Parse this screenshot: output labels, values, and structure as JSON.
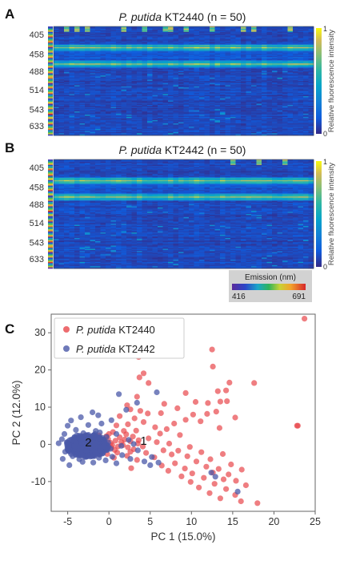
{
  "panels": {
    "A": {
      "label": "A",
      "title_italic": "P. putida",
      "title_rest": " KT2440 (n = 50)"
    },
    "B": {
      "label": "B",
      "title_italic": "P. putida",
      "title_rest": " KT2442 (n = 50)"
    },
    "C": {
      "label": "C"
    }
  },
  "chart_data": [
    {
      "type": "heatmap",
      "panel": "A",
      "rows": 100,
      "columns": 50,
      "y_tick_labels": [
        "405",
        "458",
        "488",
        "514",
        "543",
        "633"
      ],
      "y_tick_values": [
        405,
        458,
        488,
        514,
        543,
        633
      ],
      "colorbar": {
        "label": "Relative fluorescence intensity",
        "min": 0,
        "max": 1,
        "ticks": [
          "1",
          "0"
        ],
        "colormap": "parula"
      },
      "bright_bands_nm": [
        458,
        488
      ],
      "sporadic_band_nm": 405
    },
    {
      "type": "heatmap",
      "panel": "B",
      "rows": 100,
      "columns": 50,
      "y_tick_labels": [
        "405",
        "458",
        "488",
        "514",
        "543",
        "633"
      ],
      "y_tick_values": [
        405,
        458,
        488,
        514,
        543,
        633
      ],
      "colorbar": {
        "label": "Relative fluorescence intensity",
        "min": 0,
        "max": 1,
        "ticks": [
          "1",
          "0"
        ],
        "colormap": "parula"
      },
      "bright_bands_nm": [
        458,
        488
      ],
      "sporadic_band_nm": 405
    },
    {
      "type": "scatter",
      "panel": "C",
      "xlabel": "PC 1 (15.0%)",
      "ylabel": "PC 2 (12.0%)",
      "xlim": [
        -7,
        25
      ],
      "ylim": [
        -18,
        35
      ],
      "x_ticks": [
        -5,
        0,
        5,
        10,
        15,
        20,
        25
      ],
      "y_ticks": [
        -10,
        0,
        10,
        20,
        30
      ],
      "legend_position": "top-left",
      "annotations": [
        {
          "text": "1",
          "x": 4.2,
          "y": 1.0
        },
        {
          "text": "2",
          "x": -2.5,
          "y": 0.5
        }
      ],
      "series": [
        {
          "name_italic": "P. putida",
          "name_rest": " KT2440",
          "color": "#e8474b",
          "points": [
            [
              23.7,
              33.8
            ],
            [
              12.5,
              25.5
            ],
            [
              3.6,
              23.5
            ],
            [
              17.6,
              16.5
            ],
            [
              12.6,
              20.9
            ],
            [
              4.2,
              19.1
            ],
            [
              3.7,
              18.0
            ],
            [
              14.6,
              16.6
            ],
            [
              4.8,
              16.5
            ],
            [
              14.2,
              14.5
            ],
            [
              13.2,
              14.3
            ],
            [
              9.3,
              13.8
            ],
            [
              3.4,
              12.8
            ],
            [
              13.5,
              11.5
            ],
            [
              14.3,
              11.6
            ],
            [
              2.2,
              10.5
            ],
            [
              6.7,
              10.9
            ],
            [
              10.5,
              11.4
            ],
            [
              12.0,
              11.1
            ],
            [
              8.3,
              9.7
            ],
            [
              3.8,
              9.0
            ],
            [
              2.6,
              9.4
            ],
            [
              4.7,
              8.3
            ],
            [
              10.2,
              8.0
            ],
            [
              11.9,
              8.2
            ],
            [
              13.0,
              8.8
            ],
            [
              3.1,
              7.0
            ],
            [
              1.3,
              7.6
            ],
            [
              6.3,
              8.4
            ],
            [
              15.3,
              7.2
            ],
            [
              9.3,
              6.6
            ],
            [
              4.2,
              6.0
            ],
            [
              7.9,
              5.6
            ],
            [
              2.3,
              5.4
            ],
            [
              11.1,
              6.2
            ],
            [
              0.9,
              5.1
            ],
            [
              5.6,
              4.6
            ],
            [
              7.0,
              4.1
            ],
            [
              13.4,
              4.4
            ],
            [
              22.9,
              5.0
            ],
            [
              3.3,
              3.7
            ],
            [
              0.5,
              3.3
            ],
            [
              6.2,
              2.9
            ],
            [
              8.6,
              2.5
            ],
            [
              2.1,
              2.7
            ],
            [
              1.3,
              1.9
            ],
            [
              4.8,
              1.6
            ],
            [
              3.6,
              1.1
            ],
            [
              0.8,
              1.0
            ],
            [
              2.6,
              0.8
            ],
            [
              5.8,
              0.6
            ],
            [
              7.3,
              0.2
            ],
            [
              9.8,
              -0.7
            ],
            [
              1.7,
              -0.2
            ],
            [
              4.1,
              -0.6
            ],
            [
              0.3,
              -0.9
            ],
            [
              3.0,
              -1.3
            ],
            [
              6.6,
              -1.6
            ],
            [
              8.4,
              -1.7
            ],
            [
              11.2,
              -2.1
            ],
            [
              1.0,
              -2.2
            ],
            [
              4.5,
              -2.3
            ],
            [
              7.6,
              -2.7
            ],
            [
              2.2,
              -3.1
            ],
            [
              9.5,
              -3.2
            ],
            [
              13.8,
              -2.6
            ],
            [
              5.5,
              -3.5
            ],
            [
              12.3,
              -4.0
            ],
            [
              0.6,
              -3.6
            ],
            [
              3.4,
              -4.2
            ],
            [
              10.6,
              -4.6
            ],
            [
              8.0,
              -5.1
            ],
            [
              14.8,
              -5.4
            ],
            [
              6.4,
              -5.7
            ],
            [
              11.8,
              -6.0
            ],
            [
              9.2,
              -6.5
            ],
            [
              13.3,
              -6.6
            ],
            [
              16.1,
              -6.8
            ],
            [
              2.7,
              -6.4
            ],
            [
              7.2,
              -7.1
            ],
            [
              12.6,
              -7.6
            ],
            [
              10.1,
              -7.8
            ],
            [
              14.5,
              -8.1
            ],
            [
              8.8,
              -8.6
            ],
            [
              11.5,
              -9.0
            ],
            [
              13.9,
              -9.4
            ],
            [
              15.4,
              -9.8
            ],
            [
              9.9,
              -10.1
            ],
            [
              12.8,
              -10.6
            ],
            [
              16.6,
              -11.0
            ],
            [
              10.9,
              -11.6
            ],
            [
              14.2,
              -12.0
            ],
            [
              12.2,
              -13.1
            ],
            [
              15.3,
              -13.6
            ],
            [
              13.5,
              -14.5
            ],
            [
              16.0,
              -15.3
            ],
            [
              18.0,
              -15.8
            ],
            [
              22.8,
              5.0
            ],
            [
              -0.3,
              2.2
            ],
            [
              -0.8,
              -0.4
            ],
            [
              -0.2,
              -2.6
            ],
            [
              -1.0,
              1.0
            ],
            [
              1.8,
              3.6
            ],
            [
              -1.4,
              -1.6
            ],
            [
              0.2,
              0.4
            ],
            [
              1.1,
              -0.6
            ],
            [
              -0.6,
              0.8
            ],
            [
              0.7,
              -1.5
            ],
            [
              2.9,
              2.1
            ],
            [
              -0.1,
              1.4
            ],
            [
              -1.8,
              0.3
            ],
            [
              1.5,
              0.6
            ],
            [
              0.4,
              -0.2
            ],
            [
              2.3,
              -0.8
            ],
            [
              -0.5,
              -1.0
            ],
            [
              1.9,
              1.3
            ],
            [
              3.5,
              0.2
            ],
            [
              0.0,
              2.8
            ],
            [
              -1.2,
              2.4
            ],
            [
              2.6,
              -2.0
            ]
          ]
        },
        {
          "name_italic": "P. putida",
          "name_rest": " KT2442",
          "color": "#4a58a8",
          "points": [
            [
              1.2,
              13.5
            ],
            [
              5.8,
              14.0
            ],
            [
              3.4,
              11.2
            ],
            [
              2.1,
              9.3
            ],
            [
              -2.0,
              8.6
            ],
            [
              -3.4,
              7.3
            ],
            [
              -1.3,
              7.8
            ],
            [
              -4.6,
              6.4
            ],
            [
              0.3,
              6.5
            ],
            [
              -0.9,
              5.6
            ],
            [
              -5.0,
              5.0
            ],
            [
              -2.5,
              5.2
            ],
            [
              -4.0,
              3.9
            ],
            [
              -5.4,
              2.8
            ],
            [
              -3.1,
              3.0
            ],
            [
              -1.6,
              3.6
            ],
            [
              0.9,
              2.8
            ],
            [
              -6.1,
              0.3
            ],
            [
              -5.7,
              1.4
            ],
            [
              -4.9,
              -0.8
            ],
            [
              -5.3,
              -2.0
            ],
            [
              -4.4,
              -3.2
            ],
            [
              -3.6,
              -4.0
            ],
            [
              -2.8,
              -3.4
            ],
            [
              -1.2,
              -3.6
            ],
            [
              0.4,
              -3.3
            ],
            [
              -3.2,
              -4.7
            ],
            [
              -0.4,
              -4.3
            ],
            [
              1.6,
              -2.9
            ],
            [
              -4.8,
              -5.6
            ],
            [
              3.5,
              -1.6
            ],
            [
              2.6,
              -3.9
            ],
            [
              4.3,
              -4.6
            ],
            [
              5.2,
              -3.4
            ],
            [
              6.0,
              -4.9
            ],
            [
              5.0,
              -5.6
            ],
            [
              12.4,
              -7.6
            ],
            [
              12.9,
              -8.7
            ],
            [
              15.6,
              -12.7
            ],
            [
              -1.9,
              -4.9
            ],
            [
              -5.6,
              -3.9
            ],
            [
              0.9,
              -5.1
            ],
            [
              -4.2,
              1.8
            ],
            [
              -3.7,
              -1.3
            ],
            [
              -2.9,
              1.1
            ],
            [
              -2.3,
              -0.9
            ],
            [
              -1.6,
              0.6
            ],
            [
              -0.8,
              -1.8
            ],
            [
              -4.5,
              0.2
            ],
            [
              -3.9,
              2.4
            ],
            [
              -2.6,
              -2.2
            ],
            [
              -1.1,
              1.9
            ],
            [
              -3.3,
              -0.1
            ],
            [
              -2.0,
              0.3
            ],
            [
              -4.1,
              -1.9
            ],
            [
              -1.4,
              -1.2
            ],
            [
              -0.5,
              0.8
            ],
            [
              -2.8,
              2.5
            ],
            [
              -3.5,
              0.9
            ],
            [
              -1.9,
              -2.8
            ],
            [
              -4.7,
              -0.3
            ],
            [
              -2.2,
              1.6
            ],
            [
              -3.0,
              -2.9
            ],
            [
              -0.9,
              0.0
            ],
            [
              -4.3,
              1.0
            ],
            [
              -1.7,
              2.8
            ],
            [
              -3.8,
              -2.4
            ],
            [
              -2.4,
              -1.5
            ],
            [
              -0.2,
              -0.6
            ],
            [
              -5.1,
              0.6
            ],
            [
              -3.6,
              1.5
            ],
            [
              -1.3,
              -0.3
            ],
            [
              -2.7,
              0.0
            ],
            [
              -0.6,
              1.2
            ],
            [
              -4.0,
              -1.0
            ],
            [
              -2.1,
              -0.5
            ],
            [
              -3.2,
              0.5
            ],
            [
              -1.0,
              -2.4
            ],
            [
              -4.6,
              -2.6
            ],
            [
              -2.9,
              -1.1
            ],
            [
              -1.5,
              0.1
            ],
            [
              -3.4,
              -0.6
            ],
            [
              -0.3,
              2.0
            ],
            [
              -2.5,
              0.7
            ],
            [
              -3.9,
              0.1
            ],
            [
              -1.8,
              -1.9
            ],
            [
              0.2,
              -1.2
            ],
            [
              -2.3,
              2.1
            ],
            [
              -4.4,
              -0.5
            ],
            [
              -1.2,
              1.0
            ],
            [
              -3.1,
              1.9
            ],
            [
              -0.7,
              -0.9
            ],
            [
              -2.6,
              -0.8
            ],
            [
              -3.7,
              0.4
            ],
            [
              -1.9,
              0.9
            ],
            [
              -2.0,
              -1.3
            ],
            [
              -5.0,
              -1.4
            ],
            [
              -0.1,
              0.5
            ],
            [
              2.4,
              1.2
            ],
            [
              1.5,
              -0.4
            ],
            [
              3.0,
              0.1
            ],
            [
              -1.1,
              3.2
            ]
          ]
        }
      ]
    }
  ]
}
